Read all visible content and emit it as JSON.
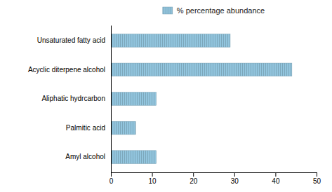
{
  "chart_data": {
    "type": "bar",
    "orientation": "horizontal",
    "categories": [
      "Amyl alcohol",
      "Palmitic acid",
      "Aliphatic hydrcarbon",
      "Acyclic diterpene alcohol",
      "Unsaturated fatty acid"
    ],
    "series": [
      {
        "name": "% percentage abundance",
        "color": "#92c5de",
        "values": [
          11,
          6,
          11,
          44,
          29
        ]
      }
    ],
    "xlim": [
      0,
      50
    ],
    "xticks": [
      0,
      10,
      20,
      30,
      40,
      50
    ],
    "legend": "top",
    "grid": false
  }
}
